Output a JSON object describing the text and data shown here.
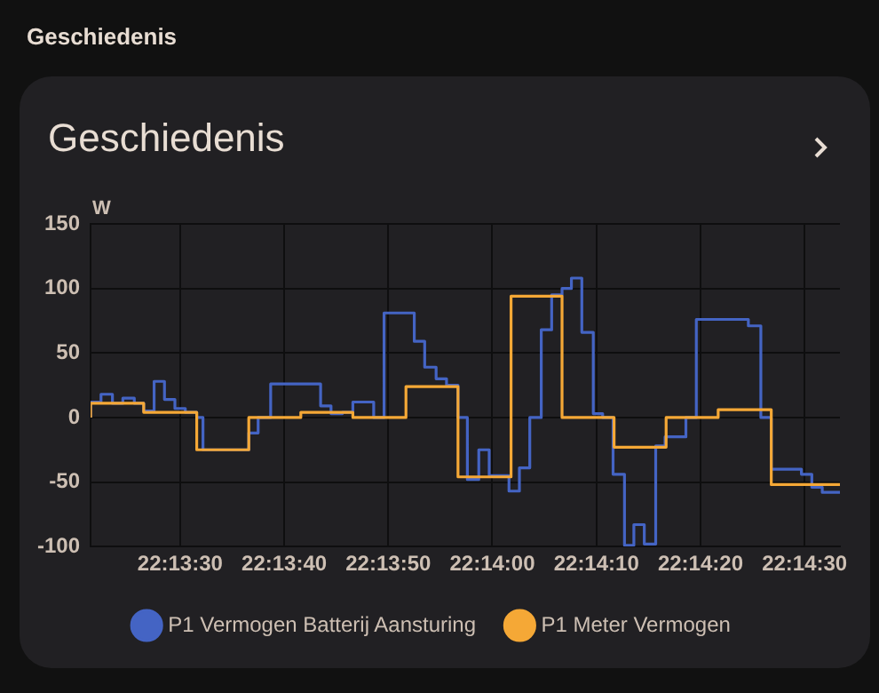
{
  "chart_data": {
    "type": "step",
    "title": "Geschiedenis",
    "annotations": [
      "Geschiedenis"
    ],
    "ylabel": "W",
    "xlim": [
      22.222611,
      22.242611
    ],
    "xticks": [
      {
        "value": 22.225,
        "label": "22:13:30"
      },
      {
        "value": 22.227778,
        "label": "22:13:40"
      },
      {
        "value": 22.230556,
        "label": "22:13:50"
      },
      {
        "value": 22.233333,
        "label": "22:14:00"
      },
      {
        "value": 22.236111,
        "label": "22:14:10"
      },
      {
        "value": 22.238889,
        "label": "22:14:20"
      },
      {
        "value": 22.241667,
        "label": "22:14:30"
      }
    ],
    "ylim": [
      -100,
      150
    ],
    "yticks": [
      -100,
      -50,
      0,
      50,
      100,
      150
    ],
    "grid": true,
    "legend": "bottom",
    "marker": "none",
    "line_style": "solid",
    "series": [
      {
        "name": "P1 Vermogen Batterij Aansturing",
        "color": "#4464c4",
        "x": [
          22.222611,
          22.222889,
          22.223194,
          22.223472,
          22.223778,
          22.224028,
          22.224306,
          22.224583,
          22.224861,
          22.225139,
          22.225444,
          22.225611,
          22.226833,
          22.227083,
          22.227417,
          22.22875,
          22.229028,
          22.229333,
          22.229611,
          22.230167,
          22.230444,
          22.23125,
          22.231528,
          22.231833,
          22.232111,
          22.232417,
          22.232667,
          22.232972,
          22.23325,
          22.233778,
          22.234056,
          22.234333,
          22.234639,
          22.234917,
          22.235194,
          22.235444,
          22.235722,
          22.236028,
          22.236278,
          22.236556,
          22.236861,
          22.237111,
          22.237389,
          22.237694,
          22.237944,
          22.2385,
          22.238778,
          22.240167,
          22.2405,
          22.240778,
          22.241583,
          22.241861,
          22.242139,
          22.242417,
          22.242611
        ],
        "values": [
          0,
          12,
          18,
          11,
          15,
          11,
          5,
          28,
          14,
          7,
          4,
          0,
          -25,
          -12,
          0,
          26,
          9,
          3,
          4,
          12,
          0,
          81,
          59,
          39,
          30,
          25,
          0,
          -48,
          -25,
          -45,
          -57,
          -39,
          0,
          68,
          95,
          100,
          108,
          66,
          3,
          0,
          -44,
          -99,
          -83,
          -98,
          -22,
          -15,
          0,
          76,
          71,
          0,
          -40,
          -44,
          -54,
          -58,
          -58
        ]
      },
      {
        "name": "P1 Meter Vermogen",
        "color": "#f5a836",
        "x": [
          22.222611,
          22.224028,
          22.225444,
          22.226833,
          22.228222,
          22.229611,
          22.231028,
          22.232417,
          22.233833,
          22.235194,
          22.236583,
          22.237972,
          22.239361,
          22.240778,
          22.242139,
          22.242611
        ],
        "values": [
          0,
          11,
          4,
          -25,
          0,
          4,
          0,
          24,
          -46,
          94,
          0,
          -23,
          0,
          6,
          -52,
          -52
        ]
      }
    ]
  }
}
